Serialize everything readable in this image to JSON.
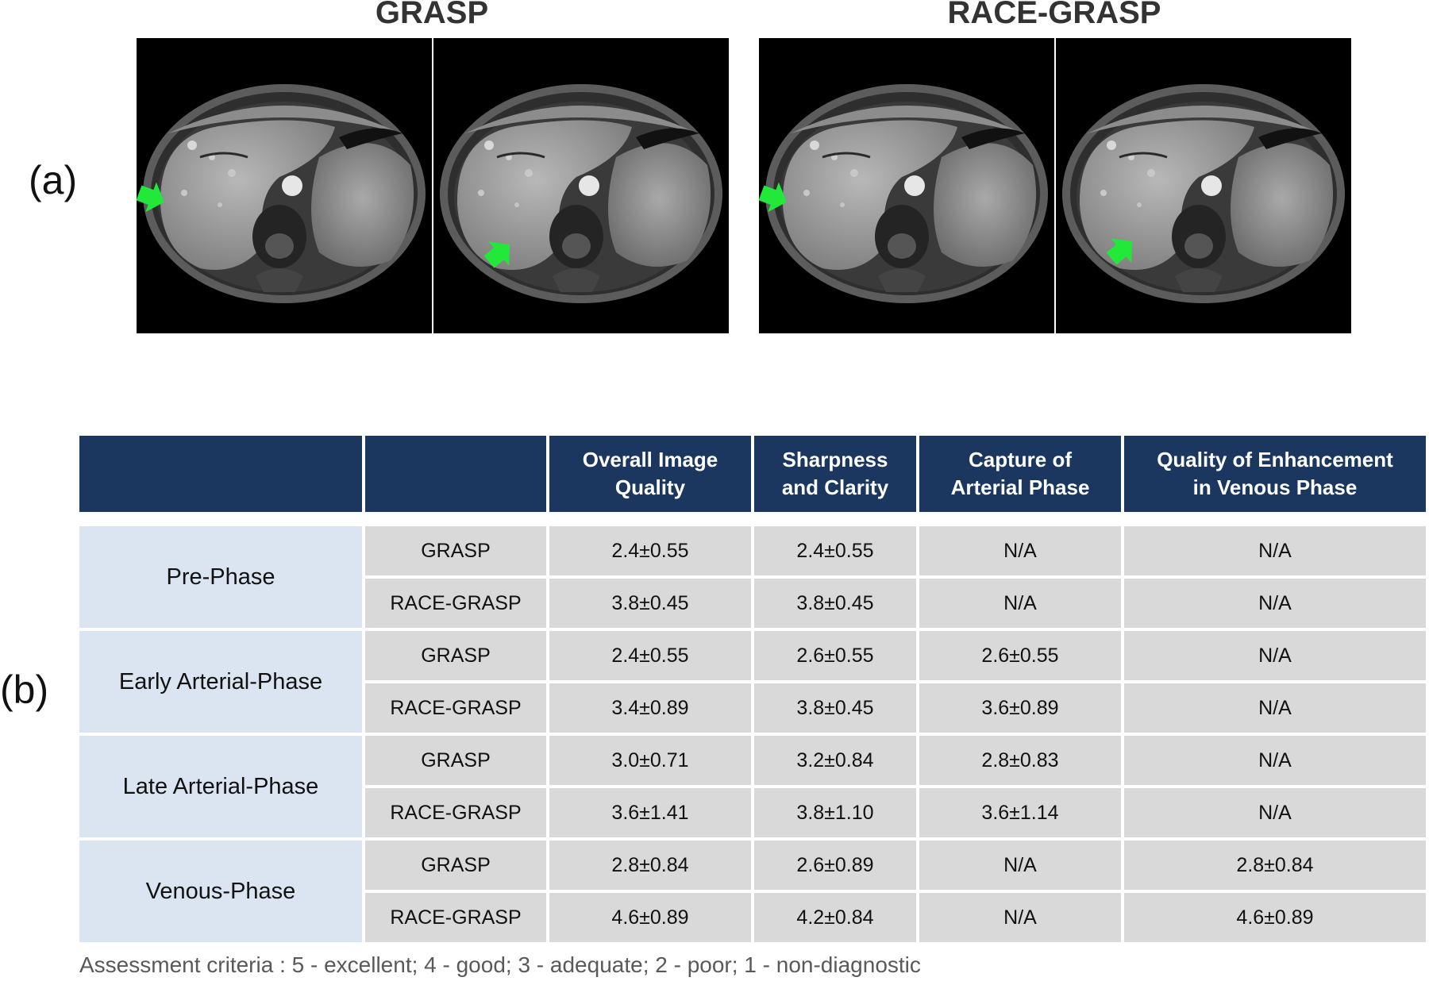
{
  "panel_a": {
    "label": "(a)",
    "groups": [
      {
        "title": "GRASP",
        "images": [
          "mri-scan-grasp-1",
          "mri-scan-grasp-2"
        ]
      },
      {
        "title": "RACE-GRASP",
        "images": [
          "mri-scan-race-grasp-1",
          "mri-scan-race-grasp-2"
        ]
      }
    ],
    "arrow_icon": "arrow-icon",
    "arrow_color": "#22e83a"
  },
  "panel_b": {
    "label": "(b)",
    "columns": [
      "",
      "",
      "Overall Image Quality",
      "Sharpness and Clarity",
      "Capture of Arterial Phase",
      "Quality of Enhancement in Venous Phase"
    ],
    "column_lines": [
      [
        "Overall Image",
        "Quality"
      ],
      [
        "Sharpness",
        "and Clarity"
      ],
      [
        "Capture of",
        "Arterial Phase"
      ],
      [
        "Quality of Enhancement",
        "in Venous Phase"
      ]
    ],
    "phases": [
      {
        "name": "Pre-Phase",
        "rows": [
          {
            "method": "GRASP",
            "values": [
              "2.4±0.55",
              "2.4±0.55",
              "N/A",
              "N/A"
            ]
          },
          {
            "method": "RACE-GRASP",
            "values": [
              "3.8±0.45",
              "3.8±0.45",
              "N/A",
              "N/A"
            ]
          }
        ]
      },
      {
        "name": "Early Arterial-Phase",
        "rows": [
          {
            "method": "GRASP",
            "values": [
              "2.4±0.55",
              "2.6±0.55",
              "2.6±0.55",
              "N/A"
            ]
          },
          {
            "method": "RACE-GRASP",
            "values": [
              "3.4±0.89",
              "3.8±0.45",
              "3.6±0.89",
              "N/A"
            ]
          }
        ]
      },
      {
        "name": "Late Arterial-Phase",
        "rows": [
          {
            "method": "GRASP",
            "values": [
              "3.0±0.71",
              "3.2±0.84",
              "2.8±0.83",
              "N/A"
            ]
          },
          {
            "method": "RACE-GRASP",
            "values": [
              "3.6±1.41",
              "3.8±1.10",
              "3.6±1.14",
              "N/A"
            ]
          }
        ]
      },
      {
        "name": "Venous-Phase",
        "rows": [
          {
            "method": "GRASP",
            "values": [
              "2.8±0.84",
              "2.6±0.89",
              "N/A",
              "2.8±0.84"
            ]
          },
          {
            "method": "RACE-GRASP",
            "values": [
              "4.6±0.89",
              "4.2±0.84",
              "N/A",
              "4.6±0.89"
            ]
          }
        ]
      }
    ],
    "header_color": "#1b375f",
    "phase_cell_color": "#dbe5f1",
    "value_cell_color": "#d9d9d9"
  },
  "criteria": "Assessment criteria :  5 - excellent; 4 - good; 3 - adequate; 2 - poor; 1 - non-diagnostic"
}
